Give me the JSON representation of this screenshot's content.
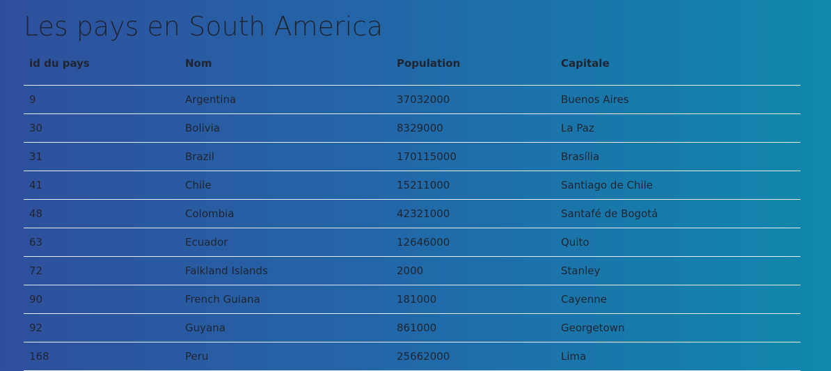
{
  "page": {
    "title": "Les pays en South America"
  },
  "table": {
    "headers": [
      "id du pays",
      "Nom",
      "Population",
      "Capitale"
    ],
    "rows": [
      [
        "9",
        "Argentina",
        "37032000",
        "Buenos Aires"
      ],
      [
        "30",
        "Bolivia",
        "8329000",
        "La Paz"
      ],
      [
        "31",
        "Brazil",
        "170115000",
        "Brasília"
      ],
      [
        "41",
        "Chile",
        "15211000",
        "Santiago de Chile"
      ],
      [
        "48",
        "Colombia",
        "42321000",
        "Santafé de Bogotá"
      ],
      [
        "63",
        "Ecuador",
        "12646000",
        "Quito"
      ],
      [
        "72",
        "Falkland Islands",
        "2000",
        "Stanley"
      ],
      [
        "90",
        "French Guiana",
        "181000",
        "Cayenne"
      ],
      [
        "92",
        "Guyana",
        "861000",
        "Georgetown"
      ],
      [
        "168",
        "Peru",
        "25662000",
        "Lima"
      ]
    ]
  }
}
